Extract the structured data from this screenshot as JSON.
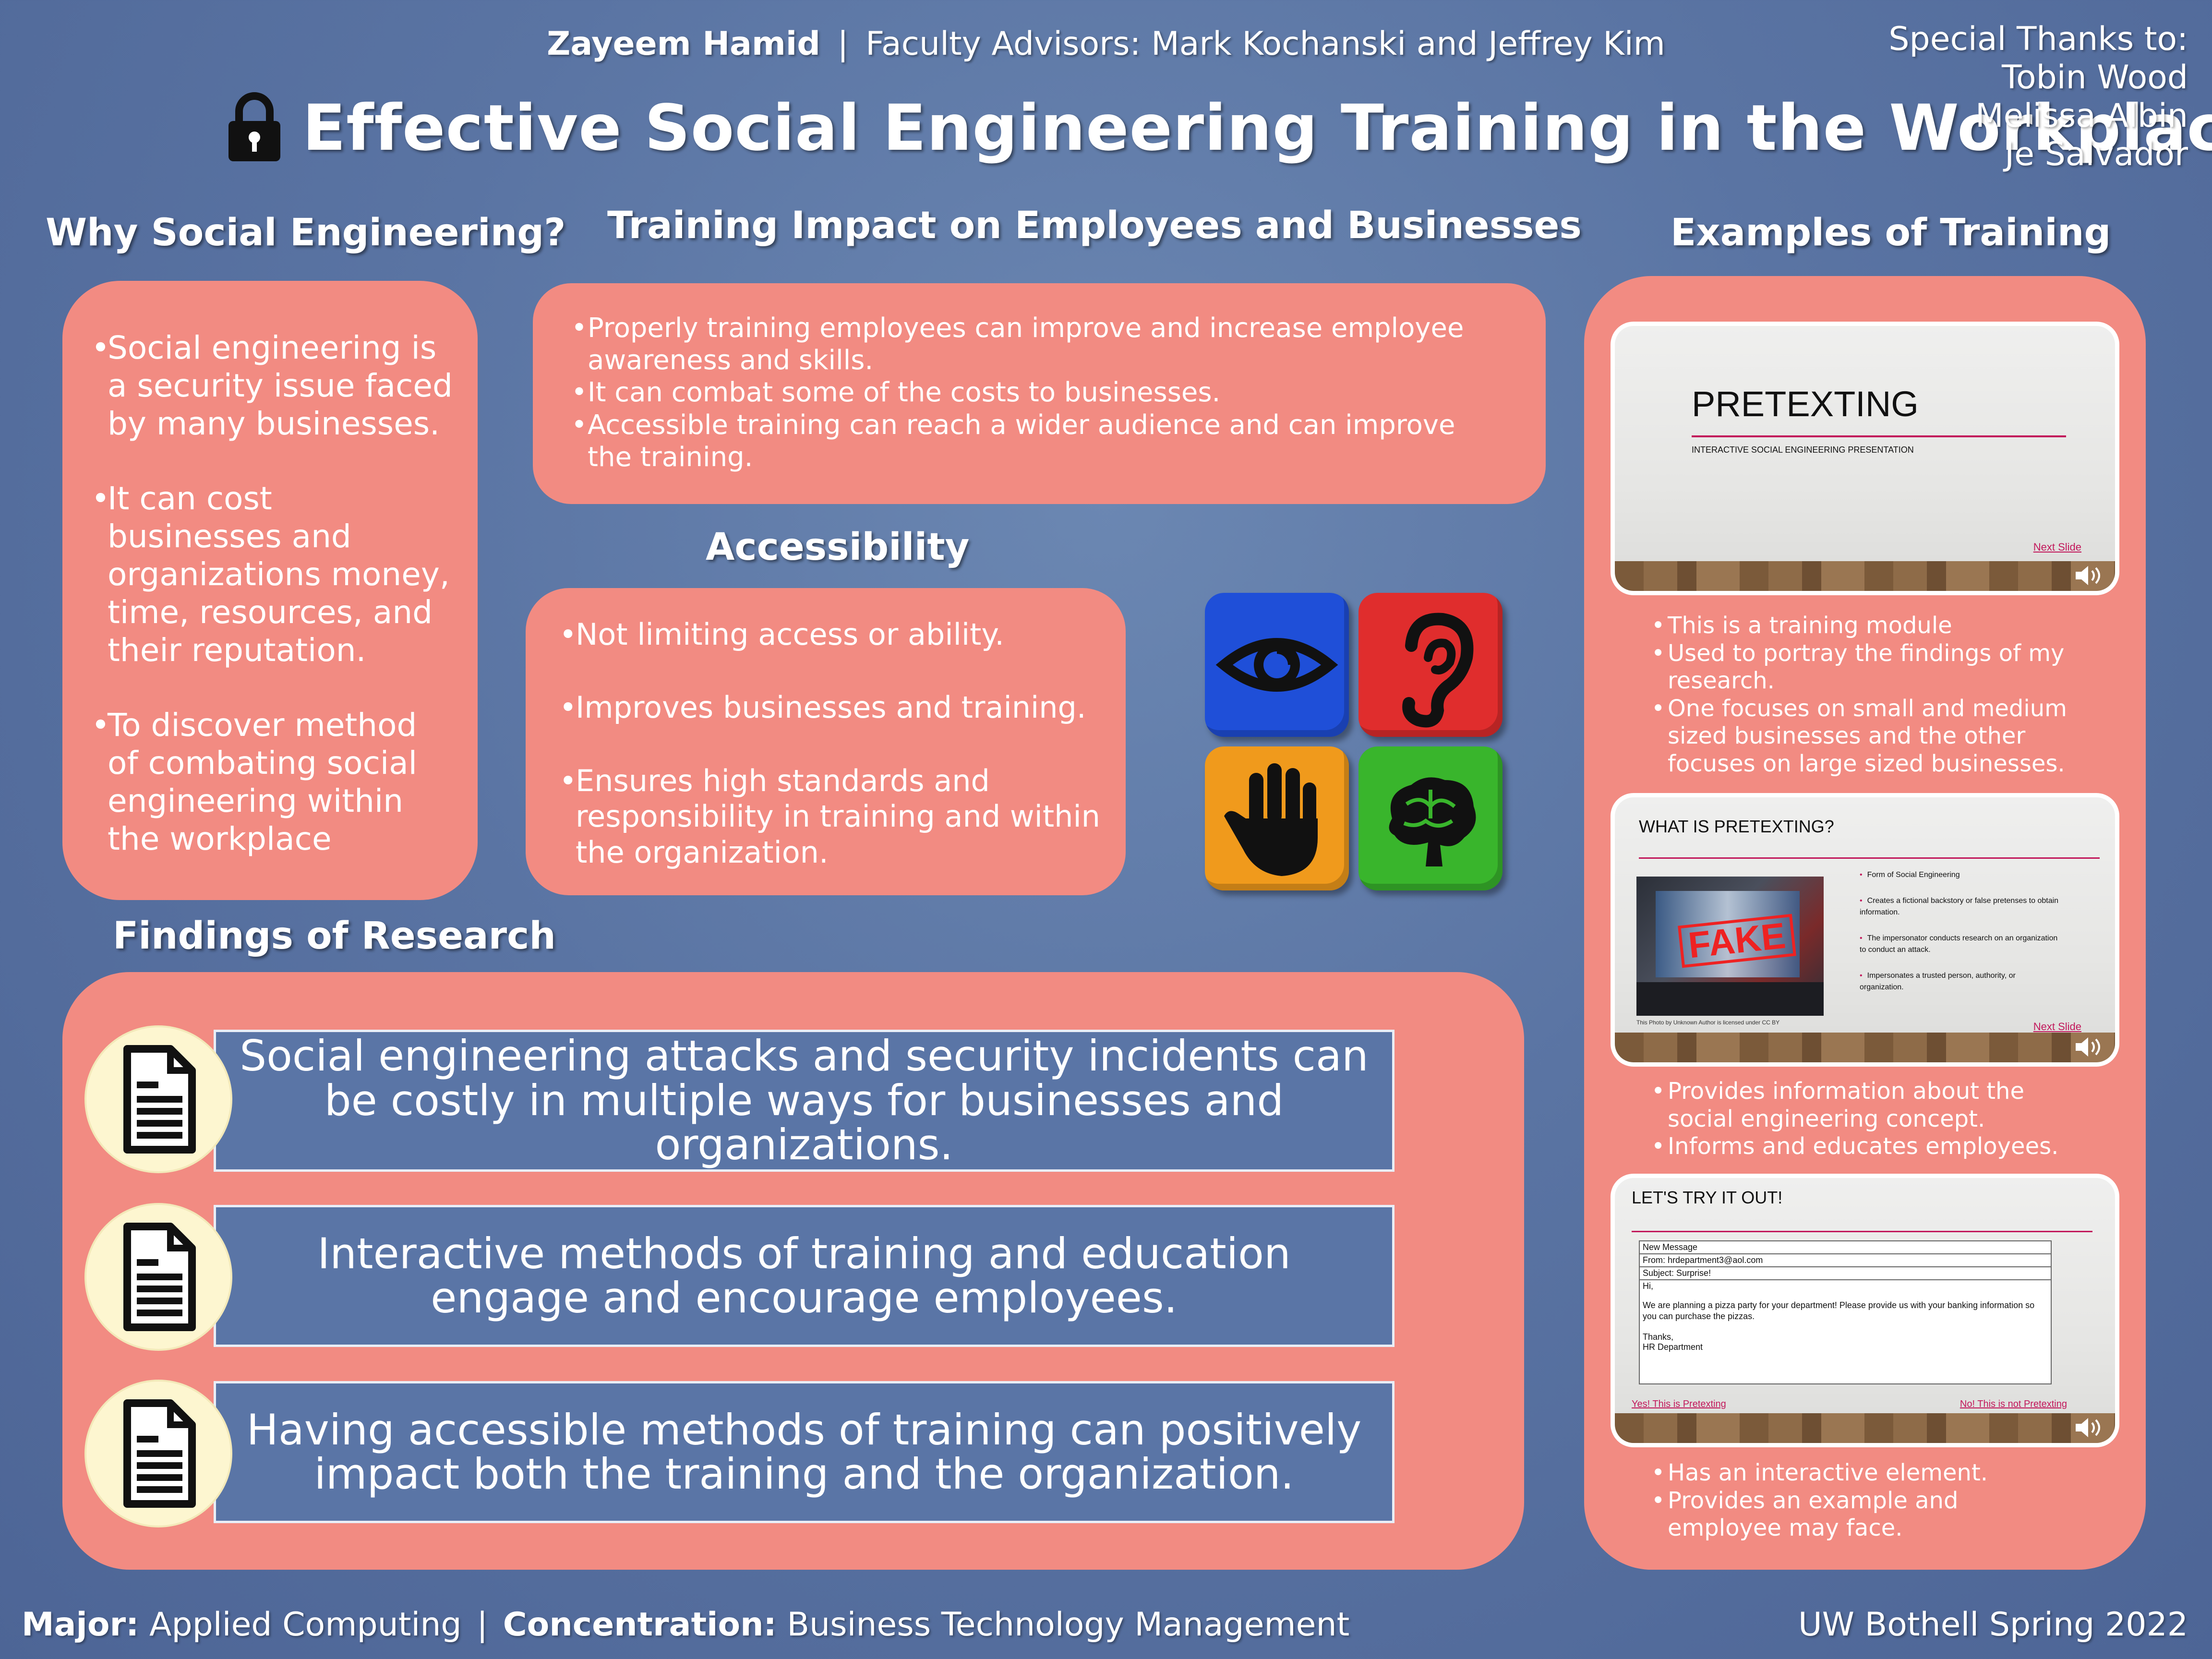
{
  "header": {
    "author": "Zayeem Hamid",
    "separator": "|",
    "advisors": "Faculty Advisors: Mark Kochanski and Jeffrey Kim",
    "title": "Effective Social Engineering Training in the Workplace",
    "thanks_label": "Special Thanks to:",
    "thanks_names": [
      "Tobin Wood",
      "Melissa Albin",
      "Je Salvador"
    ]
  },
  "why": {
    "heading": "Why Social Engineering?",
    "bullets": [
      "Social engineering is a security issue faced by many businesses.",
      "It can cost businesses and organizations money, time, resources, and their reputation.",
      "To discover method of combating social engineering within the workplace"
    ]
  },
  "impact": {
    "heading": "Training Impact on Employees and Businesses",
    "bullets": [
      "Properly training employees can improve and increase employee awareness and skills.",
      "It can combat some of the costs to businesses.",
      "Accessible training can reach a wider audience and can improve the training."
    ]
  },
  "accessibility": {
    "heading": "Accessibility",
    "bullets": [
      "Not limiting access or ability.",
      "Improves businesses and training.",
      "Ensures high standards and responsibility in training and within the organization."
    ],
    "icons": [
      "eye-icon",
      "ear-icon",
      "hand-icon",
      "brain-icon"
    ],
    "icon_colors": [
      "#1f4fd8",
      "#e02d2d",
      "#f09a1c",
      "#39b52c"
    ]
  },
  "findings": {
    "heading": "Findings of Research",
    "items": [
      "Social engineering attacks and security incidents can be costly in multiple ways for businesses and organizations.",
      "Interactive methods of training and education engage and encourage employees.",
      "Having accessible methods of training can positively impact both the training and the organization."
    ]
  },
  "examples": {
    "heading": "Examples of Training",
    "slide1": {
      "title": "PRETEXTING",
      "subtitle": "INTERACTIVE SOCIAL ENGINEERING PRESENTATION",
      "link": "Next Slide"
    },
    "slide1_bullets": [
      "This is a training module",
      "Used to portray the findings of my research.",
      "One focuses on small and medium sized businesses and the other focuses on large sized businesses."
    ],
    "slide2": {
      "title": "WHAT IS PRETEXTING?",
      "points": [
        "Form of Social Engineering",
        "Creates a fictional backstory or false pretenses to obtain information.",
        "The impersonator conducts research on an organization to conduct an attack.",
        "Impersonates a trusted person, authority, or organization."
      ],
      "image_word": "FAKE",
      "credit": "This Photo by Unknown Author is licensed under CC BY",
      "link": "Next Slide"
    },
    "slide2_bullets": [
      "Provides information about the social engineering concept.",
      "Informs and educates employees."
    ],
    "slide3": {
      "title": "LET'S TRY IT OUT!",
      "email_header": "New Message",
      "email_from": "From: hrdepartment3@aol.com",
      "email_subject": "Subject: Surprise!",
      "email_greeting": "Hi,",
      "email_body": "We are planning a pizza party for your department! Please provide us with your banking information so you can purchase the pizzas.",
      "email_thanks": "Thanks,",
      "email_sign": "HR Department",
      "yes_link": "Yes! This is Pretexting",
      "no_link": "No! This is not Pretexting"
    },
    "slide3_bullets": [
      "Has an interactive element.",
      "Provides an example and employee may face."
    ]
  },
  "footer": {
    "major_label": "Major:",
    "major": "Applied Computing",
    "separator": "|",
    "concentration_label": "Concentration:",
    "concentration": "Business Technology Management",
    "right": "UW Bothell Spring 2022"
  },
  "colors": {
    "background": "#5a74a3",
    "panel": "#f28b82",
    "finding_box": "#5a75a6",
    "slide_accent": "#c2185b"
  }
}
